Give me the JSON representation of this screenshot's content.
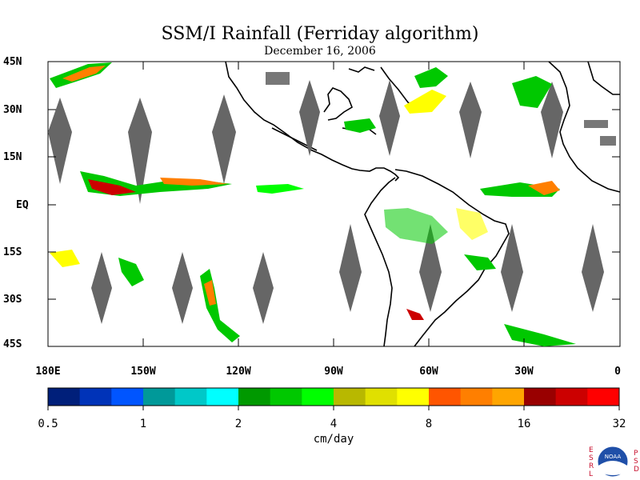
{
  "title": "SSM/I Rainfall (Ferriday algorithm)",
  "subtitle": "December 16, 2006",
  "lat_labels": [
    "45N",
    "30N",
    "15N",
    "EQ",
    "15S",
    "30S",
    "45S"
  ],
  "lon_labels": [
    "180E",
    "150W",
    "120W",
    "90W",
    "60W",
    "30W",
    "0"
  ],
  "colorbar": {
    "tick_labels": [
      "0.5",
      "1",
      "2",
      "4",
      "8",
      "16",
      "32"
    ],
    "units": "cm/day",
    "colors": [
      "#001f7a",
      "#0033b8",
      "#0055ff",
      "#009999",
      "#00c8c8",
      "#00ffff",
      "#009900",
      "#00c800",
      "#00ff00",
      "#b8b800",
      "#e0e000",
      "#ffff00",
      "#ff5500",
      "#ff7f00",
      "#ffa500",
      "#990000",
      "#cc0000",
      "#ff0000"
    ]
  },
  "logo": {
    "left_letters": [
      "E",
      "S",
      "R",
      "L"
    ],
    "right_letters": [
      "P",
      "S",
      "D"
    ],
    "badge_text": "NOAA"
  }
}
